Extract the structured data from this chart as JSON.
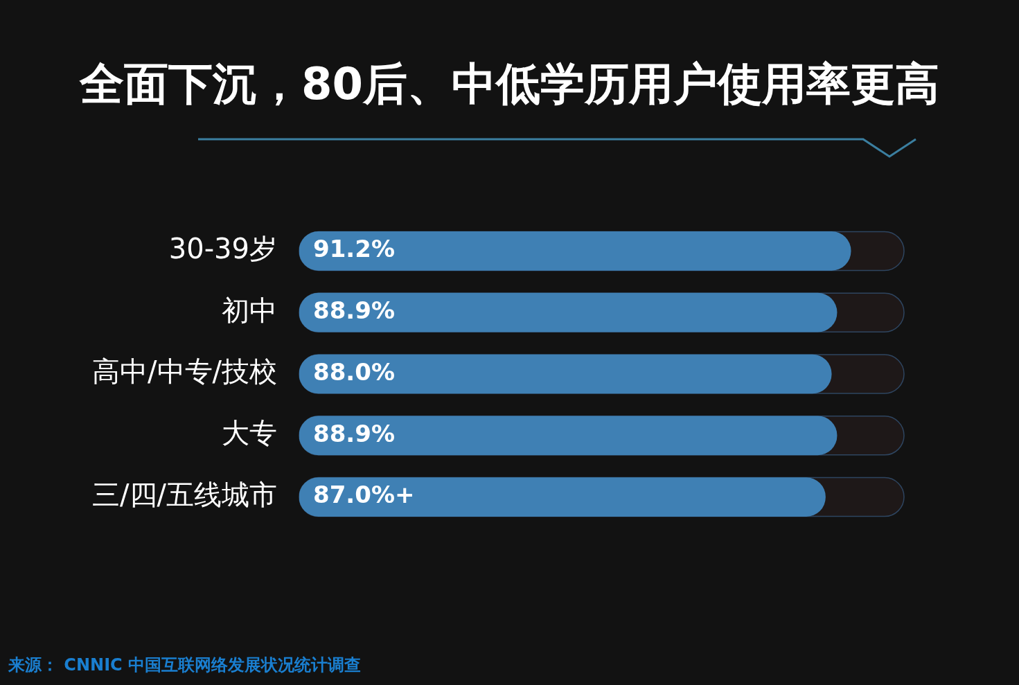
{
  "chart_data": {
    "type": "bar",
    "orientation": "horizontal",
    "title": "全面下沉，80后、中低学历用户使用率更高",
    "categories": [
      "30-39岁",
      "初中",
      "高中/中专/技校",
      "大专",
      "三/四/五线城市"
    ],
    "values": [
      91.2,
      88.9,
      88.0,
      88.9,
      87.0
    ],
    "value_labels": [
      "91.2%",
      "88.9%",
      "88.0%",
      "88.9%",
      "87.0%+"
    ],
    "color": "#3f80b4",
    "xlim": [
      0,
      100
    ],
    "tick_labels": "y",
    "annotations": [
      "来源： CNNIC 中国互联网络发展状况统计调查"
    ]
  }
}
